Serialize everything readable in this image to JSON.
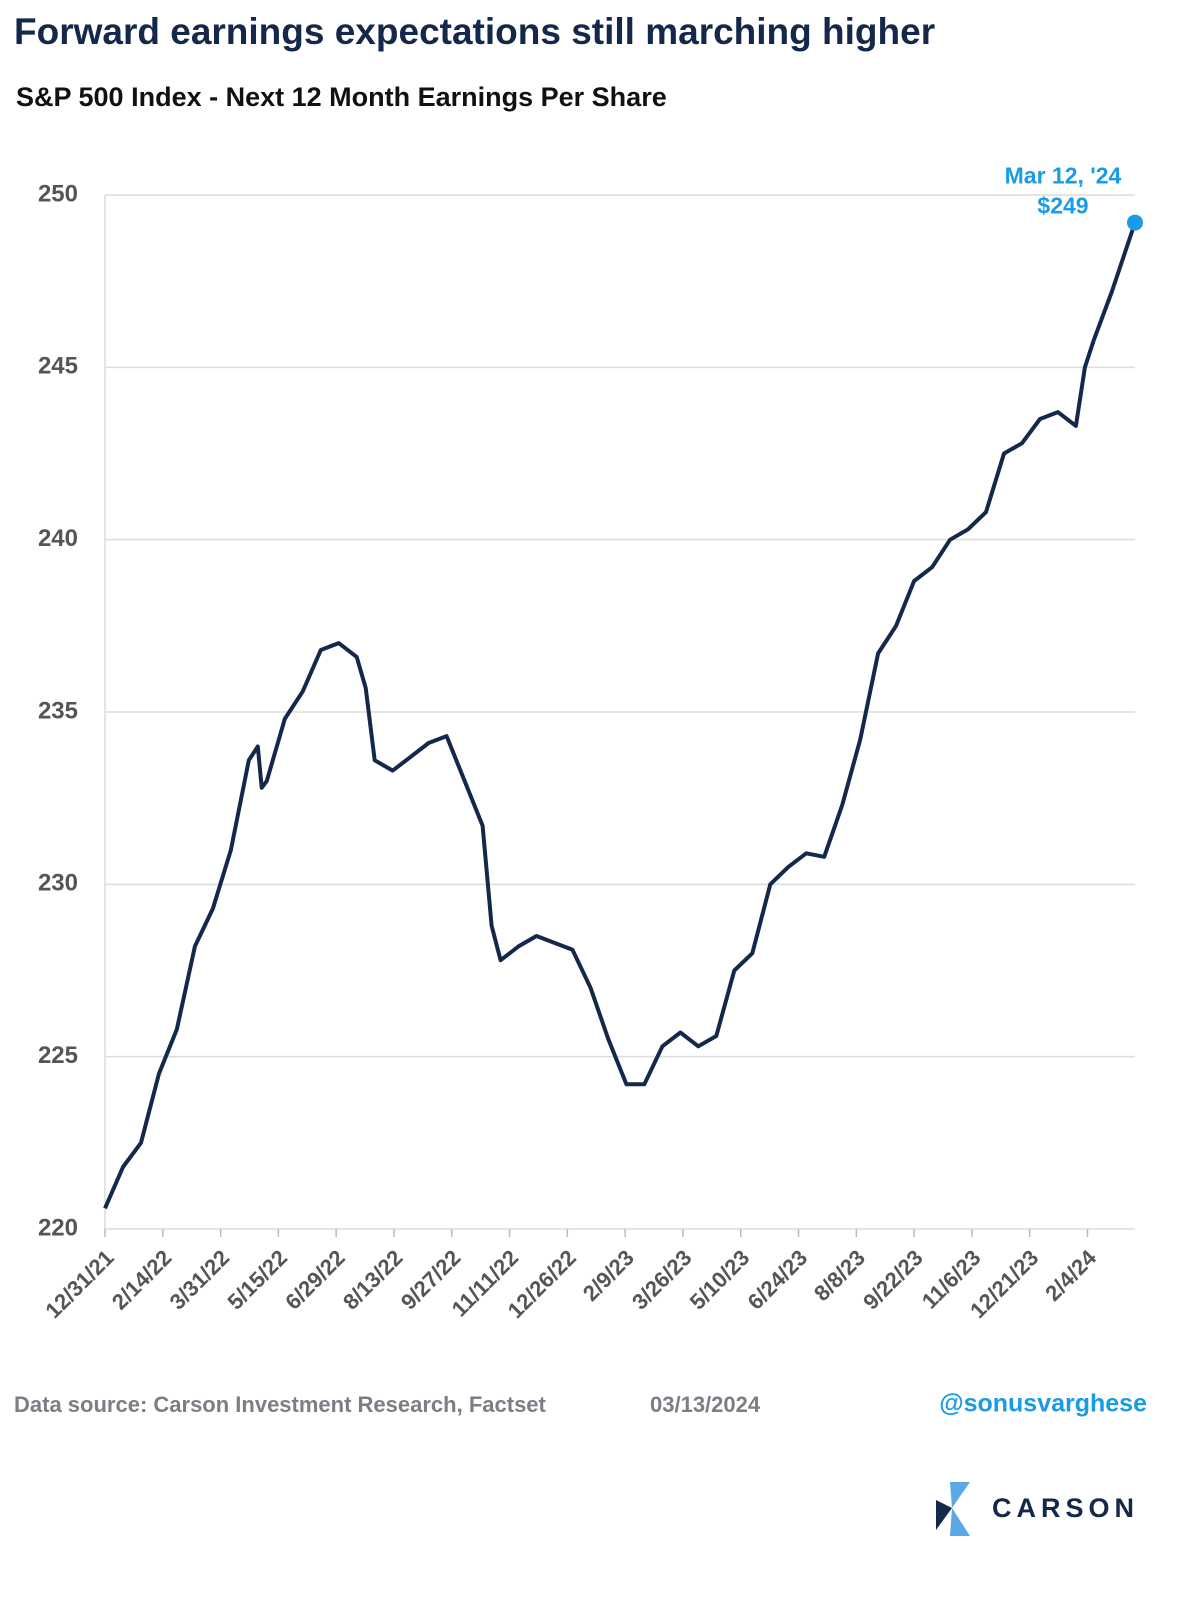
{
  "chart_data": {
    "type": "line",
    "title": "Forward earnings expectations still marching higher",
    "subtitle": "S&P 500 Index - Next 12 Month Earnings Per Share",
    "x": [
      "12/31/21",
      "1/14/22",
      "1/28/22",
      "2/11/22",
      "2/25/22",
      "3/11/22",
      "3/25/22",
      "4/8/22",
      "4/22/22",
      "4/29/22",
      "5/2/22",
      "5/6/22",
      "5/20/22",
      "6/3/22",
      "6/17/22",
      "7/1/22",
      "7/15/22",
      "7/22/22",
      "7/29/22",
      "8/12/22",
      "8/26/22",
      "9/9/22",
      "9/23/22",
      "10/7/22",
      "10/21/22",
      "10/28/22",
      "11/4/22",
      "11/18/22",
      "12/2/22",
      "12/16/22",
      "12/30/22",
      "1/13/23",
      "1/27/23",
      "2/10/23",
      "2/24/23",
      "3/10/23",
      "3/24/23",
      "4/7/23",
      "4/21/23",
      "5/5/23",
      "5/19/23",
      "6/2/23",
      "6/16/23",
      "6/30/23",
      "7/14/23",
      "7/28/23",
      "8/11/23",
      "8/25/23",
      "9/8/23",
      "9/22/23",
      "10/6/23",
      "10/20/23",
      "11/3/23",
      "11/17/23",
      "12/1/23",
      "12/15/23",
      "12/29/23",
      "1/12/24",
      "1/26/24",
      "2/2/24",
      "2/9/24",
      "2/23/24",
      "3/12/24"
    ],
    "values": [
      220.6,
      221.8,
      222.5,
      224.5,
      225.8,
      228.2,
      229.3,
      231.0,
      233.6,
      234.0,
      232.8,
      233.0,
      234.8,
      235.6,
      236.8,
      237.0,
      236.6,
      235.7,
      233.6,
      233.3,
      233.7,
      234.1,
      234.3,
      233.0,
      231.7,
      228.8,
      227.8,
      228.2,
      228.5,
      228.3,
      228.1,
      227.0,
      225.5,
      224.2,
      224.2,
      225.3,
      225.7,
      225.3,
      225.6,
      227.5,
      228.0,
      230.0,
      230.5,
      230.9,
      230.8,
      232.3,
      234.2,
      236.7,
      237.5,
      238.8,
      239.2,
      240.0,
      240.3,
      240.8,
      242.5,
      242.8,
      243.5,
      243.7,
      243.3,
      245.0,
      245.8,
      247.2,
      249.2
    ],
    "color": "#14284b",
    "xlim": [
      "12/31/21",
      "3/12/24"
    ],
    "xticks": [
      "12/31/21",
      "2/14/22",
      "3/31/22",
      "5/15/22",
      "6/29/22",
      "8/13/22",
      "9/27/22",
      "11/11/22",
      "12/26/22",
      "2/9/23",
      "3/26/23",
      "5/10/23",
      "6/24/23",
      "8/8/23",
      "9/22/23",
      "11/6/23",
      "12/21/23",
      "2/4/24"
    ],
    "ylim": [
      220,
      250
    ],
    "yticks": [
      220,
      225,
      230,
      235,
      240,
      245,
      250
    ],
    "grid": true,
    "annotation": {
      "lines": [
        "Mar 12, '24",
        "$249"
      ],
      "color": "#1a9be8"
    }
  },
  "footer": {
    "source": "Data source: Carson Investment Research, Factset",
    "date": "03/13/2024",
    "handle": "@sonusvarghese",
    "logo": "CARSON"
  }
}
